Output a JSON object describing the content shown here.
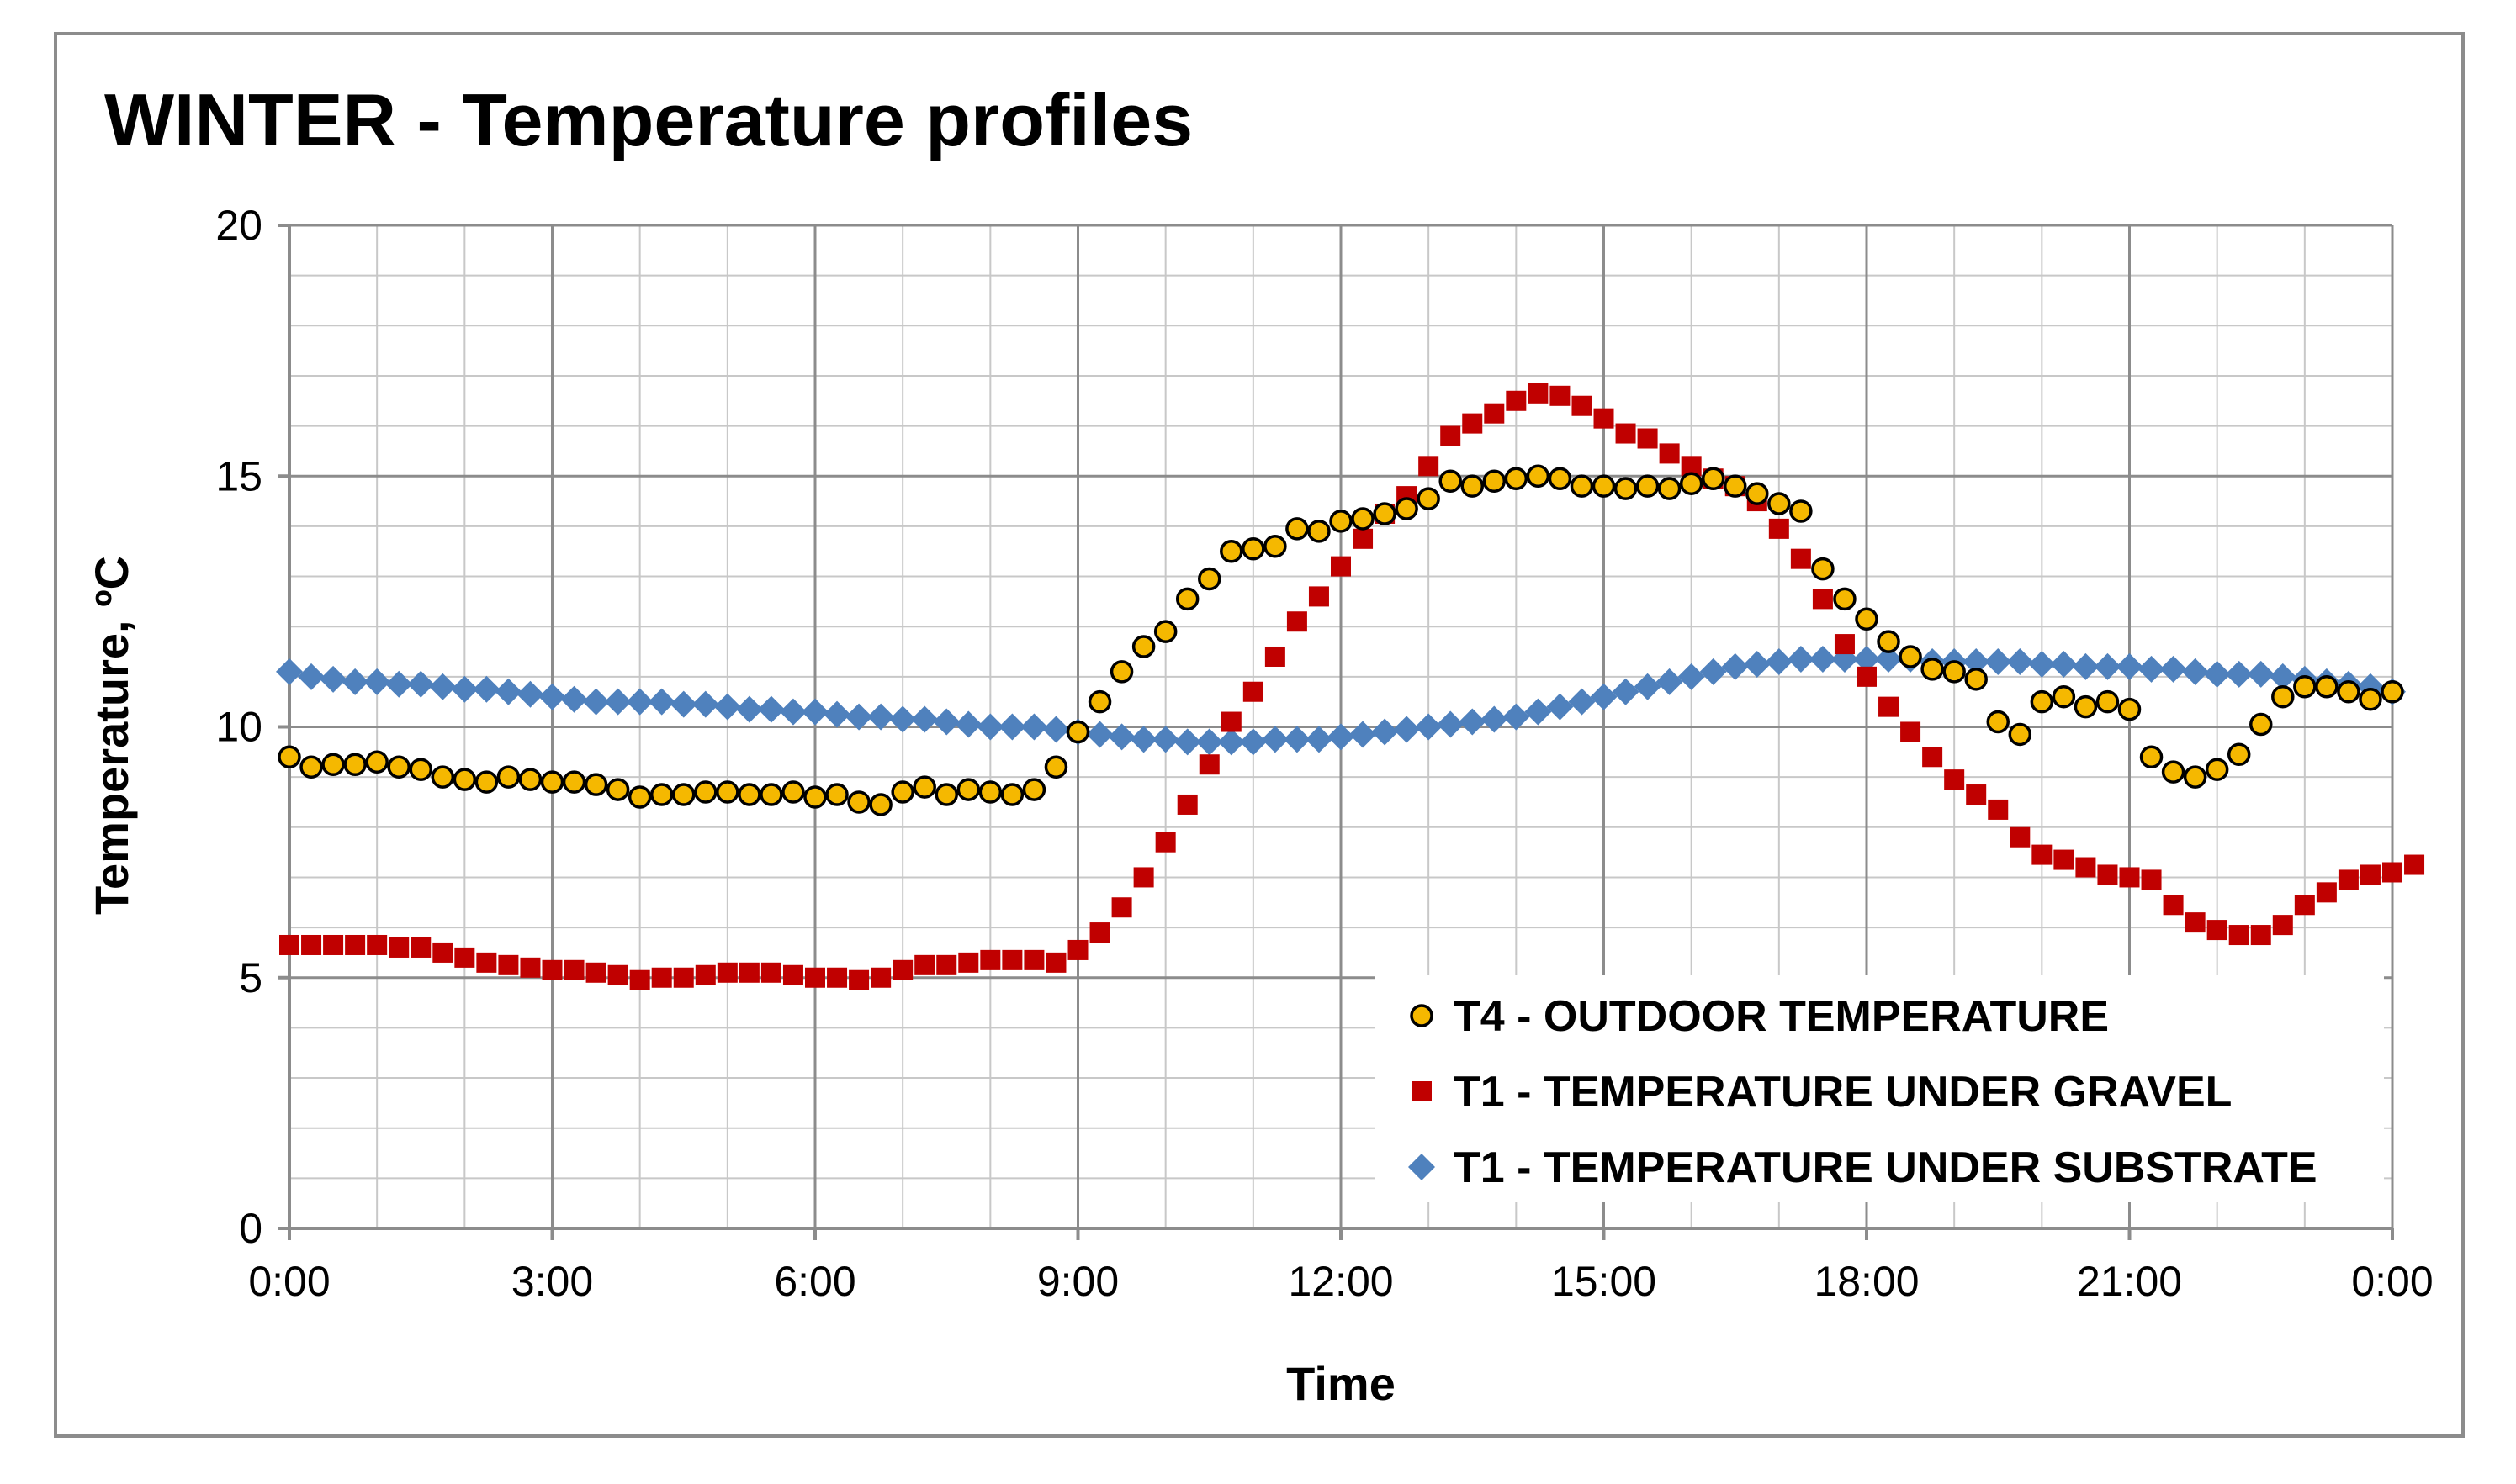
{
  "chart_data": {
    "type": "scatter",
    "title": "WINTER - Temperature profiles",
    "xlabel": "Time",
    "ylabel": "Temperature, ºC",
    "xlim": [
      0,
      24
    ],
    "ylim": [
      0,
      20
    ],
    "x_ticks": [
      "0:00",
      "3:00",
      "6:00",
      "9:00",
      "12:00",
      "15:00",
      "18:00",
      "21:00",
      "0:00"
    ],
    "y_ticks": [
      "0",
      "5",
      "10",
      "15",
      "20"
    ],
    "grid": true,
    "legend_position": "bottom-right",
    "x_step_hours": 0.25,
    "series": [
      {
        "name": "T4 - OUTDOOR TEMPERATURE",
        "marker": "circle",
        "color": "#f5b800",
        "edge_color": "#000000",
        "values": [
          9.4,
          9.2,
          9.25,
          9.25,
          9.3,
          9.2,
          9.15,
          9.0,
          8.95,
          8.9,
          9.0,
          8.95,
          8.9,
          8.9,
          8.85,
          8.75,
          8.6,
          8.65,
          8.65,
          8.7,
          8.7,
          8.65,
          8.65,
          8.7,
          8.6,
          8.65,
          8.5,
          8.45,
          8.7,
          8.8,
          8.65,
          8.75,
          8.7,
          8.65,
          8.75,
          9.2,
          9.9,
          10.5,
          11.1,
          11.6,
          11.9,
          12.55,
          12.95,
          13.5,
          13.55,
          13.6,
          13.95,
          13.9,
          14.1,
          14.15,
          14.25,
          14.35,
          14.55,
          14.9,
          14.8,
          14.9,
          14.95,
          15.0,
          14.95,
          14.8,
          14.8,
          14.75,
          14.8,
          14.75,
          14.85,
          14.95,
          14.8,
          14.65,
          14.45,
          14.3,
          13.15,
          12.55,
          12.15,
          11.7,
          11.4,
          11.15,
          11.1,
          10.95,
          10.1,
          9.85,
          10.5,
          10.6,
          10.4,
          10.5,
          10.35,
          9.4,
          9.1,
          9.0,
          9.15,
          9.45,
          10.05,
          10.6,
          10.8,
          10.8,
          10.7,
          10.55,
          10.7
        ]
      },
      {
        "name": "T1 - TEMPERATURE UNDER GRAVEL",
        "marker": "square",
        "color": "#c00000",
        "values": [
          5.65,
          5.65,
          5.65,
          5.65,
          5.65,
          5.6,
          5.6,
          5.5,
          5.4,
          5.3,
          5.25,
          5.2,
          5.15,
          5.15,
          5.1,
          5.05,
          4.95,
          5.0,
          5.0,
          5.05,
          5.1,
          5.1,
          5.1,
          5.05,
          5.0,
          5.0,
          4.95,
          5.0,
          5.15,
          5.25,
          5.25,
          5.3,
          5.35,
          5.35,
          5.35,
          5.3,
          5.55,
          5.9,
          6.4,
          7.0,
          7.7,
          8.45,
          9.25,
          10.1,
          10.7,
          11.4,
          12.1,
          12.6,
          13.2,
          13.75,
          14.25,
          14.6,
          15.2,
          15.8,
          16.05,
          16.25,
          16.5,
          16.65,
          16.6,
          16.4,
          16.15,
          15.85,
          15.75,
          15.45,
          15.2,
          14.95,
          14.8,
          14.5,
          13.95,
          13.35,
          12.55,
          11.65,
          11.0,
          10.4,
          9.9,
          9.4,
          8.95,
          8.65,
          8.35,
          7.8,
          7.45,
          7.35,
          7.2,
          7.05,
          7.0,
          6.95,
          6.45,
          6.1,
          5.95,
          5.85,
          5.85,
          6.05,
          6.45,
          6.7,
          6.95,
          7.05,
          7.1,
          7.25
        ]
      },
      {
        "name": "T1 - TEMPERATURE UNDER SUBSTRATE",
        "marker": "diamond",
        "color": "#4f81bd",
        "values": [
          11.1,
          11.0,
          10.95,
          10.9,
          10.9,
          10.85,
          10.85,
          10.8,
          10.75,
          10.75,
          10.7,
          10.65,
          10.6,
          10.55,
          10.5,
          10.5,
          10.5,
          10.5,
          10.45,
          10.45,
          10.4,
          10.35,
          10.35,
          10.3,
          10.3,
          10.25,
          10.2,
          10.2,
          10.15,
          10.15,
          10.1,
          10.05,
          10.0,
          10.0,
          10.0,
          9.95,
          9.9,
          9.85,
          9.8,
          9.75,
          9.75,
          9.7,
          9.7,
          9.7,
          9.7,
          9.75,
          9.75,
          9.75,
          9.8,
          9.85,
          9.9,
          9.95,
          10.0,
          10.05,
          10.1,
          10.15,
          10.2,
          10.3,
          10.4,
          10.5,
          10.6,
          10.7,
          10.8,
          10.9,
          11.0,
          11.1,
          11.2,
          11.25,
          11.3,
          11.35,
          11.35,
          11.35,
          11.35,
          11.35,
          11.35,
          11.3,
          11.3,
          11.3,
          11.3,
          11.3,
          11.25,
          11.25,
          11.2,
          11.2,
          11.2,
          11.15,
          11.15,
          11.1,
          11.05,
          11.05,
          11.05,
          11.0,
          10.95,
          10.9,
          10.85,
          10.8,
          10.7
        ]
      }
    ]
  }
}
